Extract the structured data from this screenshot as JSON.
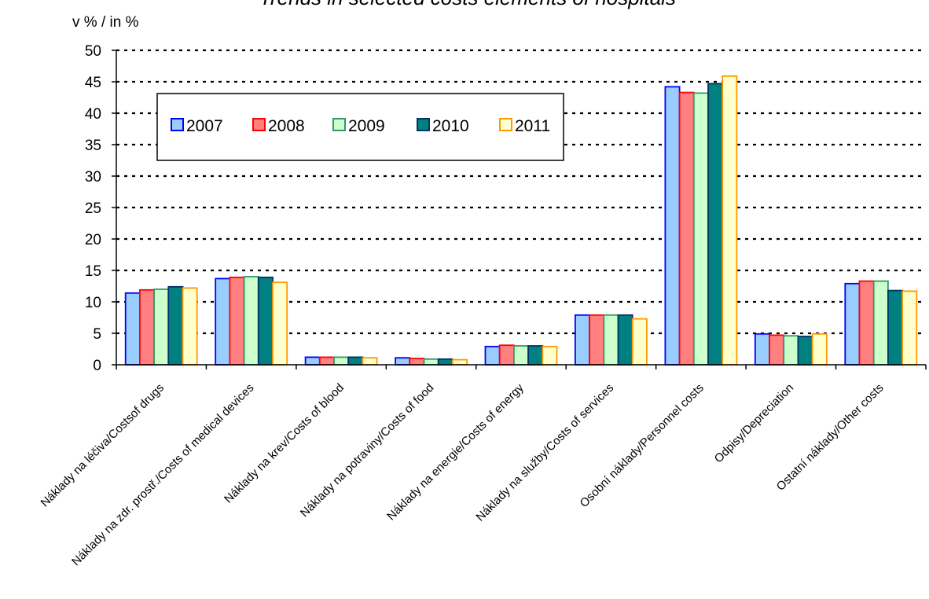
{
  "chart_data": {
    "type": "bar",
    "title": "Trends in selected costs elements of hospitals",
    "ylabel": "v % / in %",
    "ylim": [
      0,
      50
    ],
    "yticks": [
      0,
      5,
      10,
      15,
      20,
      25,
      30,
      35,
      40,
      45,
      50
    ],
    "grid": true,
    "legend_position": "top-left",
    "categories": [
      "Náklady na léčiva/Costsof drugs",
      "Náklady na zdr. prostř./Costs of medical devices",
      "Náklady na krev/Costs of blood",
      "Náklady na potraviny/Costs of food",
      "Náklady na energie/Costs of energy",
      "Náklady na služby/Costs of services",
      "Osobní náklady/Personnel costs",
      "Odpisy/Depreciation",
      "Ostatní náklady/Other costs"
    ],
    "series": [
      {
        "name": "2007",
        "fill": "#99ccff",
        "stroke": "#0000ff",
        "values": [
          11.4,
          13.7,
          1.2,
          1.1,
          2.9,
          7.9,
          44.2,
          4.9,
          12.9
        ]
      },
      {
        "name": "2008",
        "fill": "#ff8080",
        "stroke": "#ff0000",
        "values": [
          11.9,
          13.9,
          1.2,
          1.0,
          3.1,
          7.9,
          43.3,
          4.7,
          13.3
        ]
      },
      {
        "name": "2009",
        "fill": "#ccffcc",
        "stroke": "#339966",
        "values": [
          12.0,
          14.0,
          1.2,
          0.9,
          3.0,
          7.9,
          43.2,
          4.6,
          13.3
        ]
      },
      {
        "name": "2010",
        "fill": "#008080",
        "stroke": "#003366",
        "values": [
          12.4,
          13.9,
          1.2,
          0.9,
          3.0,
          7.9,
          44.7,
          4.5,
          11.8
        ]
      },
      {
        "name": "2011",
        "fill": "#ffffcc",
        "stroke": "#ff9900",
        "values": [
          12.2,
          13.1,
          1.1,
          0.8,
          2.9,
          7.3,
          45.9,
          4.9,
          11.7
        ]
      }
    ]
  }
}
